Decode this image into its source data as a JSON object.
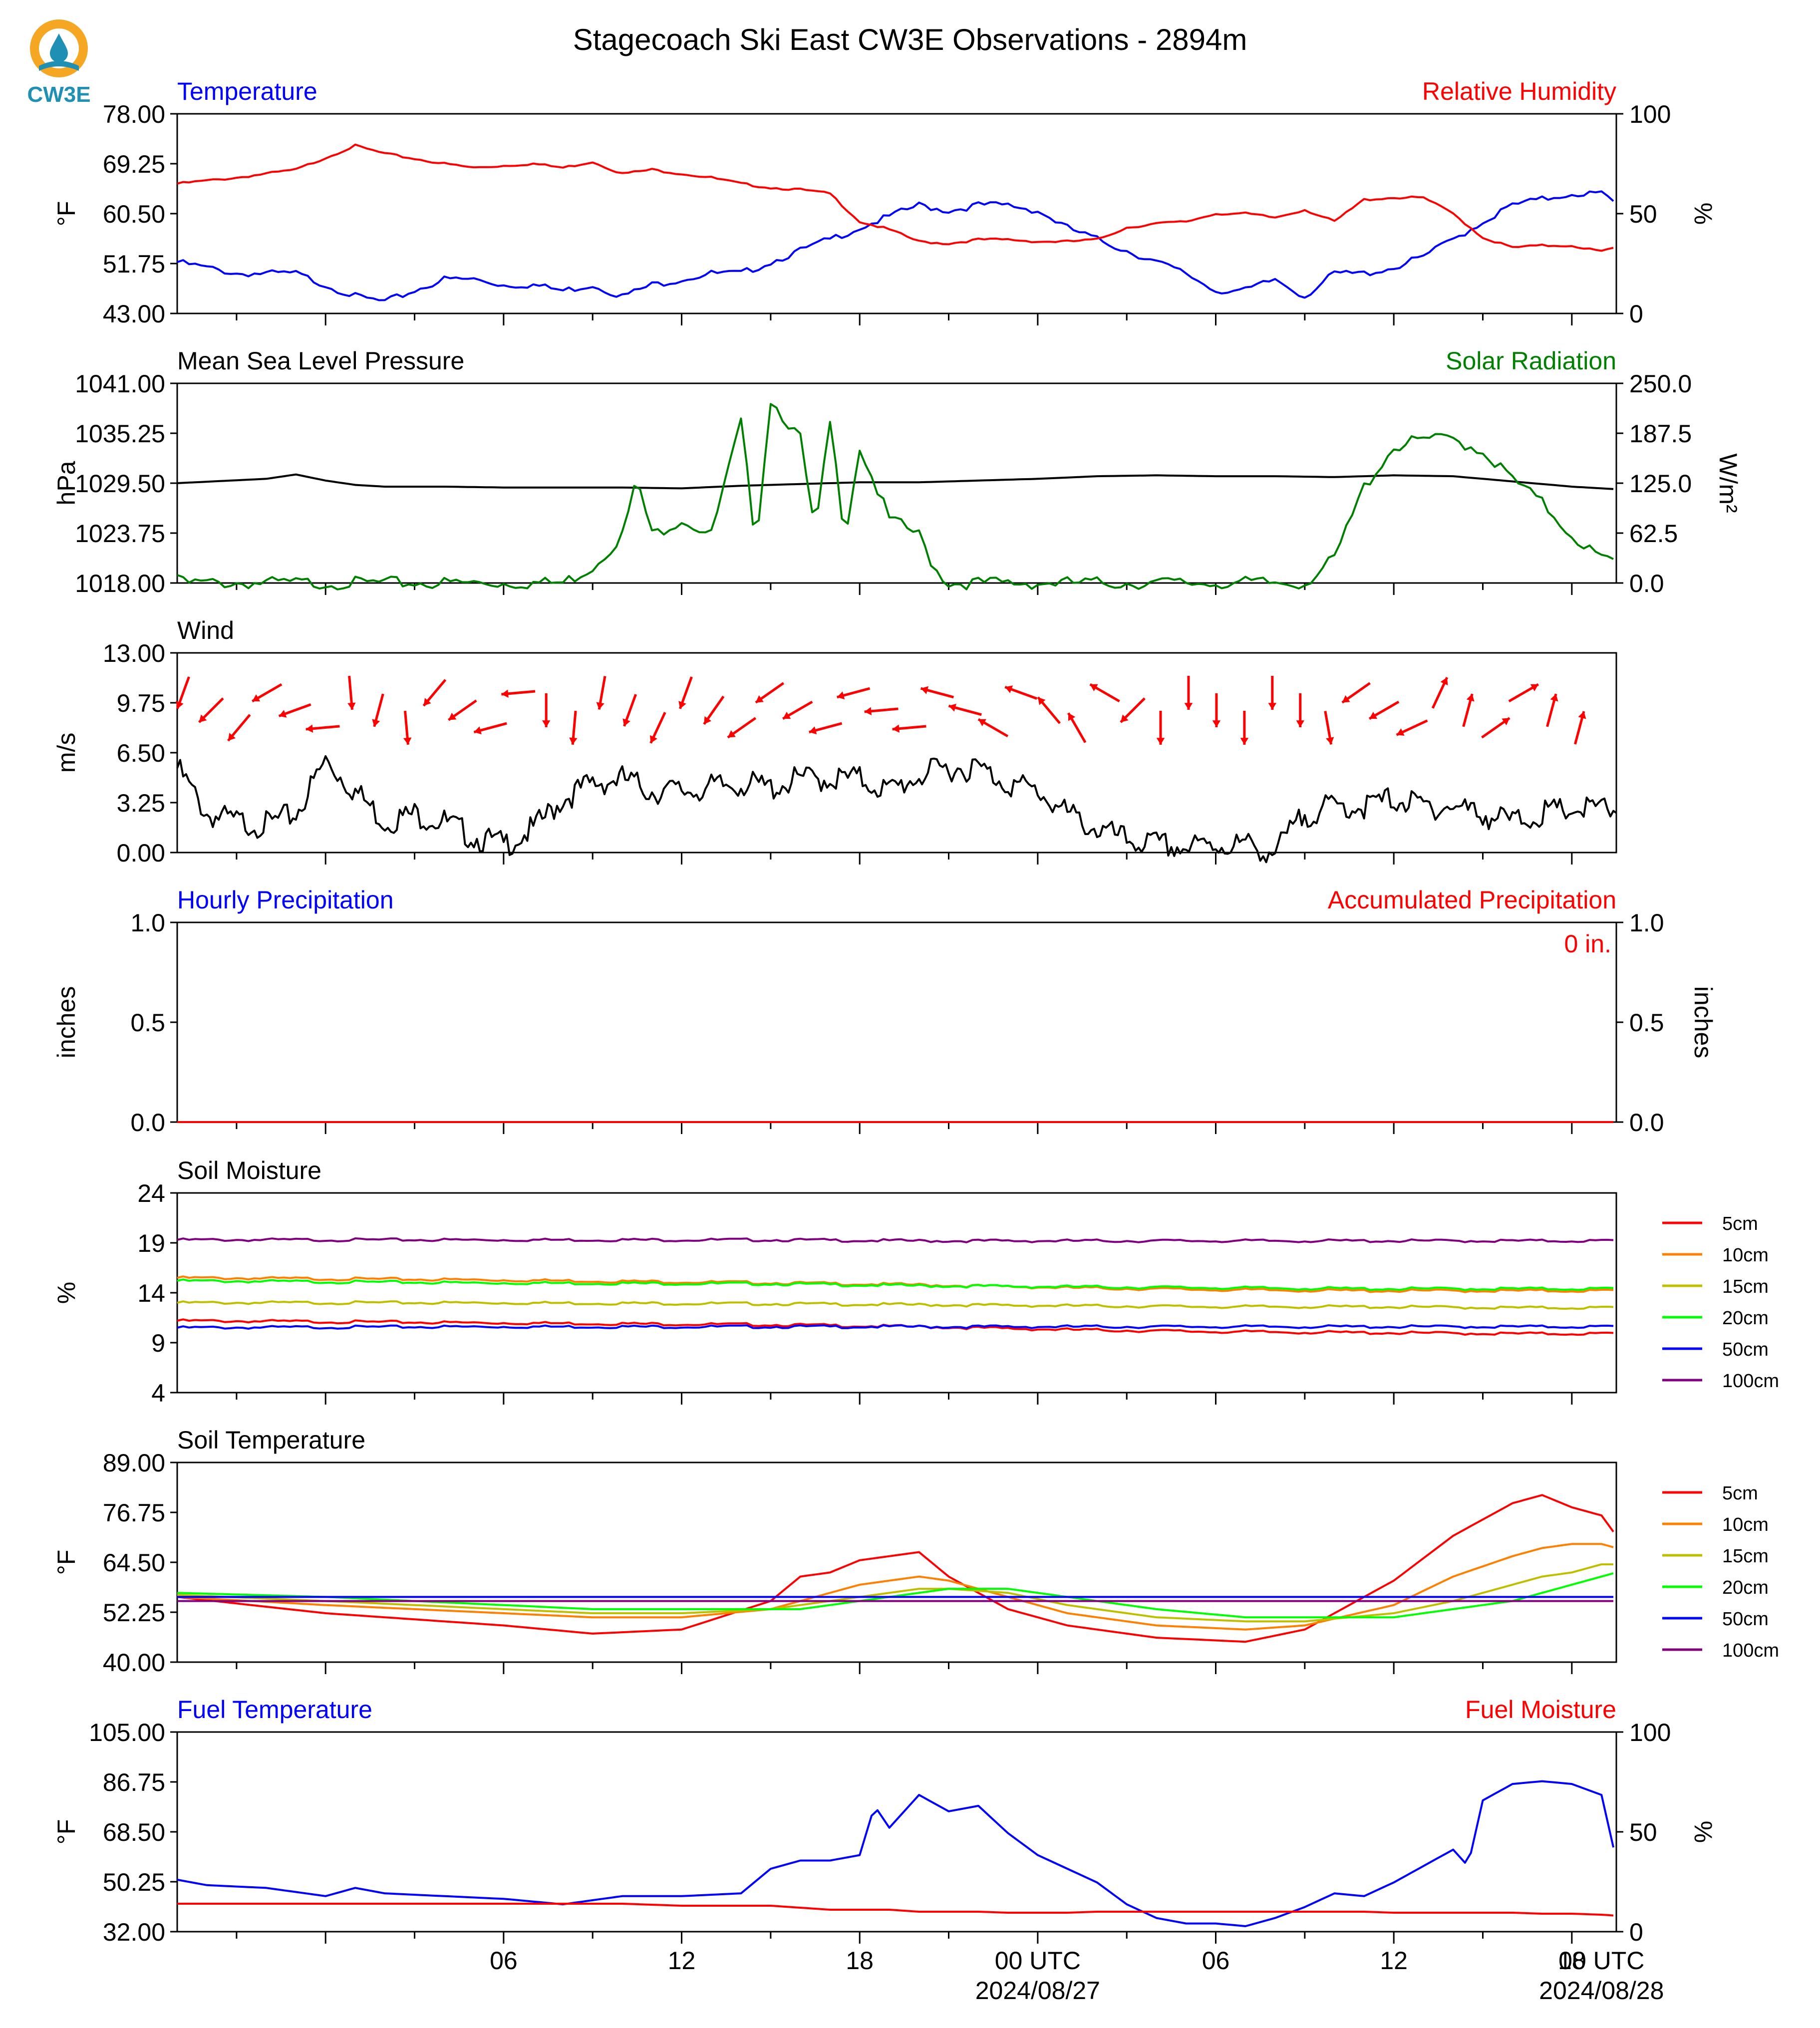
{
  "title": "Stagecoach Ski East CW3E Observations - 2894m",
  "logo": {
    "text": "CW3E",
    "color": "#1f8fb3",
    "accent": "#f5a623"
  },
  "x_axis": {
    "ticks": [
      "06",
      "12",
      "18",
      "00 UTC",
      "06",
      "12",
      "18",
      "00 UTC"
    ],
    "dates": [
      "2024/08/27",
      "2024/08/28"
    ]
  },
  "colors": {
    "temp": "#0000ff",
    "rh": "#ff0000",
    "solar": "#008000",
    "pressure": "#000000",
    "wind_arrow": "#ff0000"
  },
  "chart_data": [
    {
      "type": "line",
      "panel": "temperature",
      "left_title": "Temperature",
      "right_title": "Relative Humidity",
      "ylabel": "°F",
      "ylabel_right": "%",
      "ylim": [
        43,
        78
      ],
      "ylim_right": [
        0,
        100
      ],
      "yticks": [
        "78.00",
        "69.25",
        "60.50",
        "51.75",
        "43.00"
      ],
      "yticks_right": [
        "100",
        "50",
        "0"
      ],
      "x_hours": [
        -5,
        -3,
        -1,
        0,
        1,
        2,
        4,
        5,
        6,
        7,
        8,
        9,
        10,
        11,
        12,
        13,
        14,
        15,
        16,
        17,
        18,
        19,
        20,
        21,
        22,
        23,
        24,
        25,
        26,
        27,
        28,
        29,
        30,
        31,
        32,
        33,
        34,
        35,
        36,
        37,
        38,
        39,
        40,
        41,
        42,
        43,
        43.5
      ],
      "series": [
        {
          "name": "Temperature",
          "axis": "left",
          "values": [
            52,
            50,
            50,
            48,
            46,
            45,
            49,
            49,
            48,
            48,
            47,
            48,
            46,
            48,
            49,
            50,
            50,
            52,
            54,
            56,
            58,
            60,
            62,
            61,
            62,
            62,
            61,
            58,
            56,
            54,
            52,
            50,
            47,
            47,
            49,
            46,
            50,
            50,
            51,
            53,
            56,
            59,
            62,
            63,
            64,
            64,
            62
          ]
        },
        {
          "name": "Relative Humidity",
          "axis": "right",
          "values": [
            65,
            68,
            72,
            78,
            84,
            80,
            75,
            73,
            74,
            75,
            73,
            76,
            70,
            72,
            70,
            68,
            65,
            63,
            62,
            60,
            46,
            42,
            36,
            35,
            37,
            37,
            36,
            36,
            37,
            43,
            45,
            46,
            50,
            50,
            48,
            52,
            46,
            57,
            58,
            58,
            50,
            38,
            33,
            34,
            34,
            31,
            33
          ]
        }
      ]
    },
    {
      "type": "line",
      "panel": "pressure_solar",
      "left_title": "Mean Sea Level Pressure",
      "right_title": "Solar Radiation",
      "ylabel": "hPa",
      "ylabel_right": "W/m²",
      "ylim": [
        1018,
        1041
      ],
      "ylim_right": [
        0,
        250
      ],
      "yticks": [
        "1041.00",
        "1035.25",
        "1029.50",
        "1023.75",
        "1018.00"
      ],
      "yticks_right": [
        "250.0",
        "187.5",
        "125.0",
        "62.5",
        "0.0"
      ],
      "series": [
        {
          "name": "Mean Sea Level Pressure",
          "axis": "left",
          "x_hours": [
            -5,
            -2,
            -1,
            0,
            1,
            2,
            4,
            6,
            8,
            10,
            12,
            14,
            16,
            18,
            20,
            22,
            24,
            26,
            28,
            30,
            32,
            34,
            36,
            38,
            40,
            42,
            43.5
          ],
          "values": [
            1029.5,
            1030,
            1030.5,
            1029.8,
            1029.3,
            1029.1,
            1029.1,
            1029,
            1029,
            1029,
            1028.9,
            1029.2,
            1029.4,
            1029.6,
            1029.6,
            1029.8,
            1030,
            1030.3,
            1030.4,
            1030.3,
            1030.3,
            1030.2,
            1030.4,
            1030.3,
            1029.7,
            1029.1,
            1028.8
          ]
        },
        {
          "name": "Solar Radiation",
          "axis": "right",
          "x_hours": [
            -5,
            -4.8,
            0,
            6,
            7,
            8,
            9,
            10,
            10.5,
            11,
            12,
            13,
            14,
            14.5,
            15,
            16,
            16.5,
            17,
            17.5,
            18,
            19,
            20,
            20.5,
            21,
            22,
            25,
            26,
            27,
            28,
            29,
            30,
            31,
            32,
            33,
            34,
            35,
            36,
            37,
            38,
            39,
            40,
            41,
            42,
            43,
            43.5
          ],
          "values": [
            10,
            0,
            0,
            0,
            0,
            0,
            20,
            60,
            130,
            60,
            80,
            60,
            200,
            50,
            230,
            180,
            60,
            200,
            60,
            170,
            80,
            60,
            20,
            0,
            0,
            0,
            0,
            0,
            0,
            0,
            0,
            0,
            0,
            0,
            30,
            120,
            170,
            180,
            180,
            165,
            130,
            100,
            60,
            30,
            25
          ]
        }
      ]
    },
    {
      "type": "line",
      "panel": "wind",
      "left_title": "Wind",
      "ylabel": "m/s",
      "ylim": [
        0,
        13
      ],
      "yticks": [
        "13.00",
        "9.75",
        "6.50",
        "3.25",
        "0.00"
      ],
      "series": [
        {
          "name": "Wind Speed",
          "axis": "left",
          "x_hours": [
            -5,
            -4,
            -3,
            -2,
            -1,
            0,
            1,
            2,
            3,
            4,
            5,
            6,
            7,
            8,
            9,
            10,
            11,
            12,
            13,
            14,
            15,
            16,
            17,
            18,
            19,
            20,
            21,
            22,
            23,
            24,
            25,
            26,
            27,
            28,
            29,
            30,
            31,
            32,
            33,
            34,
            35,
            36,
            37,
            38,
            39,
            40,
            41,
            42,
            43,
            43.5
          ],
          "values": [
            5.5,
            2.5,
            2,
            1.8,
            2.5,
            6,
            4,
            2,
            2.5,
            2,
            1,
            0.5,
            1.5,
            3.5,
            4.5,
            4.8,
            4,
            4,
            4.2,
            4.5,
            4.2,
            4.8,
            4.8,
            4.8,
            4,
            5,
            5.5,
            5.5,
            4.5,
            4,
            2.5,
            1.5,
            0.8,
            0.5,
            0.3,
            0.5,
            0.5,
            0,
            2.5,
            3,
            3,
            3.5,
            3,
            3,
            2.5,
            2,
            2.5,
            2.8,
            2.8,
            2.8
          ]
        }
      ],
      "arrows_dir": [
        200,
        225,
        220,
        240,
        250,
        265,
        175,
        195,
        175,
        220,
        235,
        255,
        265,
        180,
        185,
        190,
        200,
        205,
        200,
        215,
        235,
        235,
        240,
        255,
        255,
        265,
        265,
        285,
        285,
        300,
        290,
        320,
        330,
        300,
        225,
        180,
        180,
        180,
        180,
        180,
        180,
        170,
        235,
        240,
        245,
        25,
        15,
        55,
        60,
        15,
        15
      ]
    },
    {
      "type": "line",
      "panel": "precipitation",
      "left_title": "Hourly Precipitation",
      "right_title": "Accumulated Precipitation",
      "ylabel": "inches",
      "ylabel_right": "inches",
      "ylim": [
        0,
        1
      ],
      "ylim_right": [
        0,
        1
      ],
      "yticks": [
        "1.0",
        "0.5",
        "0.0"
      ],
      "yticks_right": [
        "1.0",
        "0.5",
        "0.0"
      ],
      "annotation": "0 in.",
      "series": [
        {
          "name": "Hourly Precipitation",
          "axis": "left",
          "x_hours": [
            -5,
            43.5
          ],
          "values": [
            0,
            0
          ]
        },
        {
          "name": "Accumulated Precipitation",
          "axis": "right",
          "x_hours": [
            -5,
            43.5
          ],
          "values": [
            0,
            0
          ]
        }
      ]
    },
    {
      "type": "line",
      "panel": "soil_moisture",
      "left_title": "Soil Moisture",
      "ylabel": "%",
      "ylim": [
        4,
        24
      ],
      "yticks": [
        "24",
        "19",
        "14",
        "9",
        "4"
      ],
      "x_hours": [
        -5,
        5,
        15,
        20,
        25,
        30,
        35,
        40,
        43.5
      ],
      "series": [
        {
          "name": "5cm",
          "color": "#ff0000",
          "values": [
            11.2,
            11,
            10.8,
            10.6,
            10.3,
            10.1,
            10,
            9.9,
            9.9
          ]
        },
        {
          "name": "10cm",
          "color": "#ff8000",
          "values": [
            15.5,
            15.3,
            15,
            14.8,
            14.5,
            14.3,
            14.2,
            14.2,
            14.2
          ]
        },
        {
          "name": "15cm",
          "color": "#bfbf00",
          "values": [
            13,
            13,
            12.9,
            12.8,
            12.7,
            12.6,
            12.6,
            12.5,
            12.5
          ]
        },
        {
          "name": "20cm",
          "color": "#00ff00",
          "values": [
            15.2,
            15,
            14.9,
            14.7,
            14.6,
            14.5,
            14.4,
            14.4,
            14.4
          ]
        },
        {
          "name": "50cm",
          "color": "#0000ff",
          "values": [
            10.5,
            10.6,
            10.6,
            10.6,
            10.6,
            10.6,
            10.6,
            10.6,
            10.6
          ]
        },
        {
          "name": "100cm",
          "color": "#800080",
          "values": [
            19.3,
            19.3,
            19.3,
            19.2,
            19.2,
            19.2,
            19.2,
            19.2,
            19.2
          ]
        }
      ]
    },
    {
      "type": "line",
      "panel": "soil_temperature",
      "left_title": "Soil Temperature",
      "ylabel": "°F",
      "ylim": [
        40,
        89
      ],
      "yticks": [
        "89.00",
        "76.75",
        "64.50",
        "52.25",
        "40.00"
      ],
      "x_hours": [
        -5,
        0,
        6,
        9,
        12,
        15,
        16,
        17,
        18,
        19,
        20,
        21,
        23,
        25,
        28,
        31,
        33,
        36,
        38,
        40,
        41,
        42,
        43,
        43.5
      ],
      "series": [
        {
          "name": "5cm",
          "color": "#ff0000",
          "values": [
            56,
            52,
            49,
            47,
            48,
            55,
            61,
            62,
            65,
            66,
            67,
            61,
            53,
            49,
            46,
            45,
            48,
            60,
            71,
            79,
            81,
            78,
            76,
            71
          ]
        },
        {
          "name": "10cm",
          "color": "#ff8000",
          "values": [
            56,
            54,
            52,
            51,
            51,
            53,
            55,
            57,
            59,
            60,
            61,
            60,
            56,
            52,
            49,
            48,
            49,
            54,
            61,
            66,
            68,
            69,
            69,
            68
          ]
        },
        {
          "name": "15cm",
          "color": "#bfbf00",
          "values": [
            56.5,
            55,
            53,
            52,
            52,
            53,
            54,
            55,
            56,
            57,
            58,
            58,
            57,
            54,
            51,
            50,
            50,
            52,
            55,
            59,
            61,
            62,
            64,
            64
          ]
        },
        {
          "name": "20cm",
          "color": "#00ff00",
          "values": [
            57,
            56,
            54,
            53,
            53,
            53,
            53,
            54,
            55,
            56,
            57,
            58,
            58,
            56,
            53,
            51,
            51,
            51,
            53,
            55,
            57,
            59,
            61,
            62
          ]
        },
        {
          "name": "50cm",
          "color": "#0000ff",
          "values": [
            56,
            56,
            56,
            56,
            56,
            56,
            56,
            56,
            56,
            56,
            56,
            56,
            56,
            56,
            56,
            56,
            56,
            56,
            56,
            56,
            56,
            56,
            56,
            56
          ]
        },
        {
          "name": "100cm",
          "color": "#800080",
          "values": [
            55,
            55,
            55,
            55,
            55,
            55,
            55,
            55,
            55,
            55,
            55,
            55,
            55,
            55,
            55,
            55,
            55,
            55,
            55,
            55,
            55,
            55,
            55,
            55
          ]
        }
      ]
    },
    {
      "type": "line",
      "panel": "fuel",
      "left_title": "Fuel Temperature",
      "right_title": "Fuel Moisture",
      "ylabel": "°F",
      "ylabel_right": "%",
      "ylim": [
        32,
        105
      ],
      "ylim_right": [
        0,
        100
      ],
      "yticks": [
        "105.00",
        "86.75",
        "68.50",
        "50.25",
        "32.00"
      ],
      "yticks_right": [
        "100",
        "50",
        "0"
      ],
      "x_hours": [
        -5,
        -4,
        -2,
        0,
        1,
        2,
        4,
        6,
        8,
        10,
        12,
        14,
        15,
        16,
        17,
        18,
        18.5,
        19,
        20,
        21,
        22,
        23,
        24,
        25,
        26,
        27,
        28,
        29,
        30,
        31,
        32,
        33,
        34,
        35,
        36,
        37,
        38,
        38.5,
        39,
        40,
        41,
        42,
        43,
        43.5
      ],
      "series": [
        {
          "name": "Fuel Temperature",
          "axis": "left",
          "values": [
            51,
            49,
            48,
            45,
            48,
            46,
            45,
            44,
            42,
            45,
            45,
            46,
            55,
            58,
            58,
            60,
            78,
            70,
            82,
            76,
            78,
            68,
            60,
            55,
            50,
            42,
            37,
            35,
            35,
            34,
            37,
            41,
            46,
            45,
            50,
            56,
            62,
            56,
            80,
            86,
            87,
            86,
            82,
            58
          ]
        },
        {
          "name": "Fuel Moisture",
          "axis": "right",
          "values": [
            14,
            14,
            14,
            14,
            14,
            14,
            14,
            14,
            14,
            14,
            13,
            13,
            13,
            12,
            11,
            11,
            11,
            11,
            10,
            10,
            10,
            9.5,
            9.5,
            9.5,
            10,
            10,
            10,
            10,
            10,
            10,
            10,
            10,
            10,
            10,
            9.5,
            9.5,
            9.5,
            9.5,
            9.5,
            9.5,
            9,
            9,
            8.5,
            8
          ]
        }
      ]
    }
  ]
}
